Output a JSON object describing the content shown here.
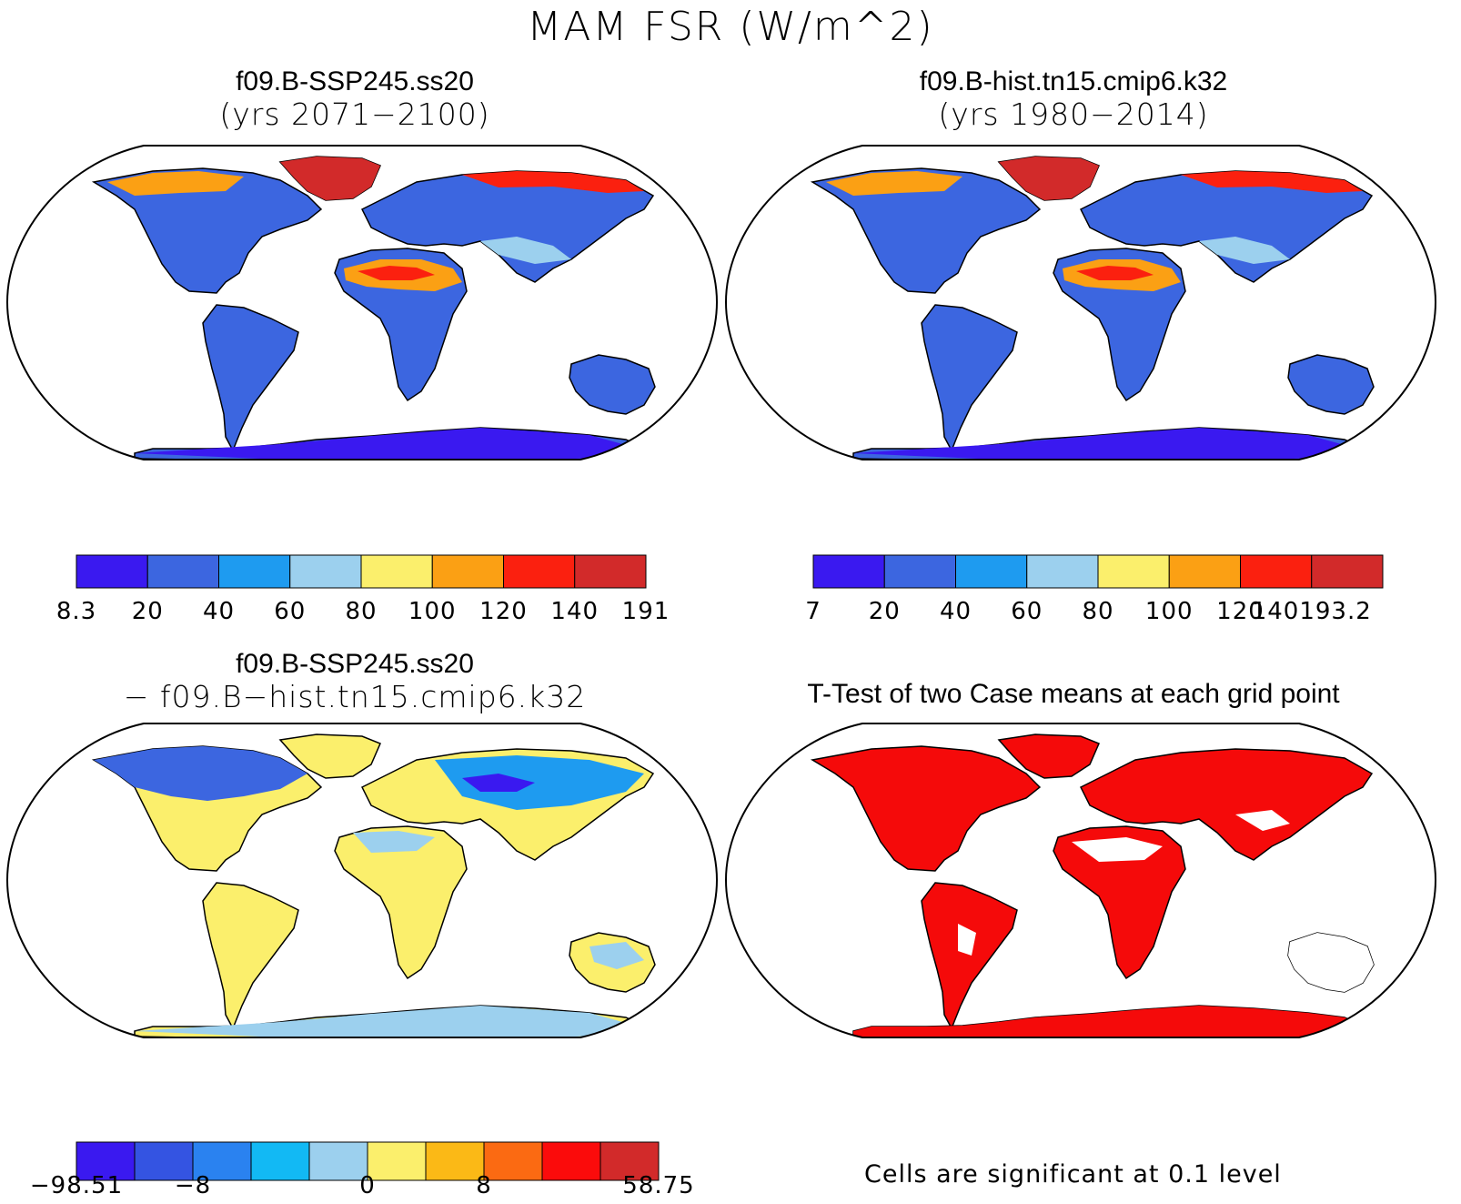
{
  "figure_title": "MAM FSR (W/m^2)",
  "panels": [
    {
      "id": "case1",
      "title_line1": "f09.B-SSP245.ss20",
      "title_line2": "(yrs 2071−2100)",
      "colorbar": {
        "colors": [
          "#3a19f0",
          "#3c66e0",
          "#1e9bf0",
          "#9cd0ee",
          "#fbef6c",
          "#fba014",
          "#fb200f",
          "#d22a2a"
        ],
        "labels": [
          "8.3",
          "20",
          "40",
          "60",
          "80",
          "100",
          "120",
          "140",
          "191"
        ]
      }
    },
    {
      "id": "case2",
      "title_line1": "f09.B-hist.tn15.cmip6.k32",
      "title_line2": "(yrs 1980−2014)",
      "colorbar": {
        "colors": [
          "#3a19f0",
          "#3c66e0",
          "#1e9bf0",
          "#9cd0ee",
          "#fbef6c",
          "#fba014",
          "#fb200f",
          "#d22a2a"
        ],
        "labels": [
          "7",
          "20",
          "40",
          "60",
          "80",
          "100",
          "120",
          "140193.2"
        ]
      }
    },
    {
      "id": "difference",
      "title_line1": "f09.B-SSP245.ss20",
      "title_line2": "− f09.B−hist.tn15.cmip6.k32",
      "colorbar": {
        "colors": [
          "#3a19f0",
          "#3454e2",
          "#2a82f0",
          "#12b9f4",
          "#9cd0ee",
          "#fbef6c",
          "#fbb916",
          "#fb6a12",
          "#fb0b0b",
          "#d22a2a"
        ],
        "labels": [
          "−98.51",
          "−8",
          "0",
          "8",
          "58.75"
        ],
        "label_slots": [
          0,
          2,
          5,
          7,
          10
        ]
      }
    },
    {
      "id": "ttest",
      "title_line1": "T-Test of two Case means at each grid point",
      "note": "Cells are significant at 0.1 level",
      "significant_color": "#f50a0a"
    }
  ],
  "map_projection": "Robinson",
  "land_fill": {
    "case_default": "#3c66e0",
    "diff_default": "#fbef6c",
    "ttest_default": "#f50a0a"
  }
}
